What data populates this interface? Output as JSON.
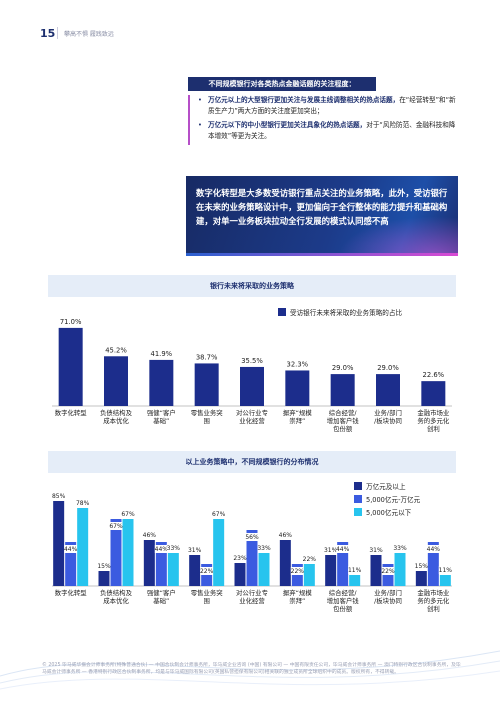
{
  "header": {
    "page_number": "15",
    "tagline": "攀高不惧 履践致远"
  },
  "focus": {
    "title": "不同规模银行对各类热点金融话题的关注程度：",
    "bullets": [
      {
        "strong": "万亿元以上的大型银行更加关注与发展主线调整相关的热点话题，",
        "rest": "在“经营转型”和“新质生产力”两大方面的关注度更加突出；"
      },
      {
        "strong": "万亿元以下的中小型银行更加关注具象化的热点话题，",
        "rest": "对于“风险防范、金融科技和降本增效”等更为关注。"
      }
    ]
  },
  "banner": {
    "text": "数字化转型是大多数受访银行重点关注的业务策略，此外，受访银行在未来的业务策略设计中，更加偏向于全行整体的能力提升和基础构建，对单一业务板块拉动全行发展的模式认同感不高"
  },
  "chart_data": [
    {
      "type": "bar",
      "title": "银行未来将采取的业务策略",
      "categories": [
        "数字化转型",
        "负债结构及成本优化",
        "强健“客户基础”",
        "零售业务突围",
        "对公行业专业化经营",
        "摒弃“规模崇拜”",
        "综合经营/增加客户钱包份额",
        "业务/部门/板块协同",
        "金融市场业务的多元化创利"
      ],
      "series": [
        {
          "name": "受访银行未来将采取的业务策略的占比",
          "values": [
            71.0,
            45.2,
            41.9,
            38.7,
            35.5,
            32.3,
            29.0,
            29.0,
            22.6
          ],
          "color": "#1c2d8c"
        }
      ],
      "value_labels": [
        "71.0%",
        "45.2%",
        "41.9%",
        "38.7%",
        "35.5%",
        "32.3%",
        "29.0%",
        "29.0%",
        "22.6%"
      ],
      "ylim": [
        0,
        80
      ],
      "grid": false,
      "legend": "top-right"
    },
    {
      "type": "bar",
      "title": "以上业务策略中，不同规模银行的分布情况",
      "categories": [
        "数字化转型",
        "负债结构及成本优化",
        "强健“客户基础”",
        "零售业务突围",
        "对公行业专业化经营",
        "摒弃“规模崇拜”",
        "综合经营/增加客户钱包份额",
        "业务/部门/板块协同",
        "金融市场业务的多元化创利"
      ],
      "series": [
        {
          "name": "万亿元及以上",
          "values": [
            85,
            15,
            46,
            31,
            23,
            46,
            31,
            31,
            15
          ],
          "color": "#1c2d8c"
        },
        {
          "name": "5,000亿元-万亿元",
          "values": [
            44,
            67,
            44,
            22,
            56,
            22,
            44,
            22,
            44
          ],
          "color": "#3b5be0"
        },
        {
          "name": "5,000亿元以下",
          "values": [
            78,
            67,
            33,
            67,
            33,
            22,
            11,
            33,
            11
          ],
          "color": "#27c4ee"
        }
      ],
      "ylim": [
        0,
        100
      ],
      "grid": false,
      "legend": "top-right"
    }
  ],
  "footer": {
    "text": "© 2025 毕马威华振会计师事务所(特殊普通合伙) — 中国合伙制会计师事务所，毕马威企业咨询 (中国) 有限公司 — 中国有限责任公司，毕马威会计师事务所 — 澳门特别行政区合伙制事务所，及毕马威会计师事务所 — 香港特别行政区合伙制事务所，均是与毕马威国际有限公司(英国私营担保有限公司)相关联的独立成员所全球组织中的成员。版权所有，不得转载。"
  }
}
